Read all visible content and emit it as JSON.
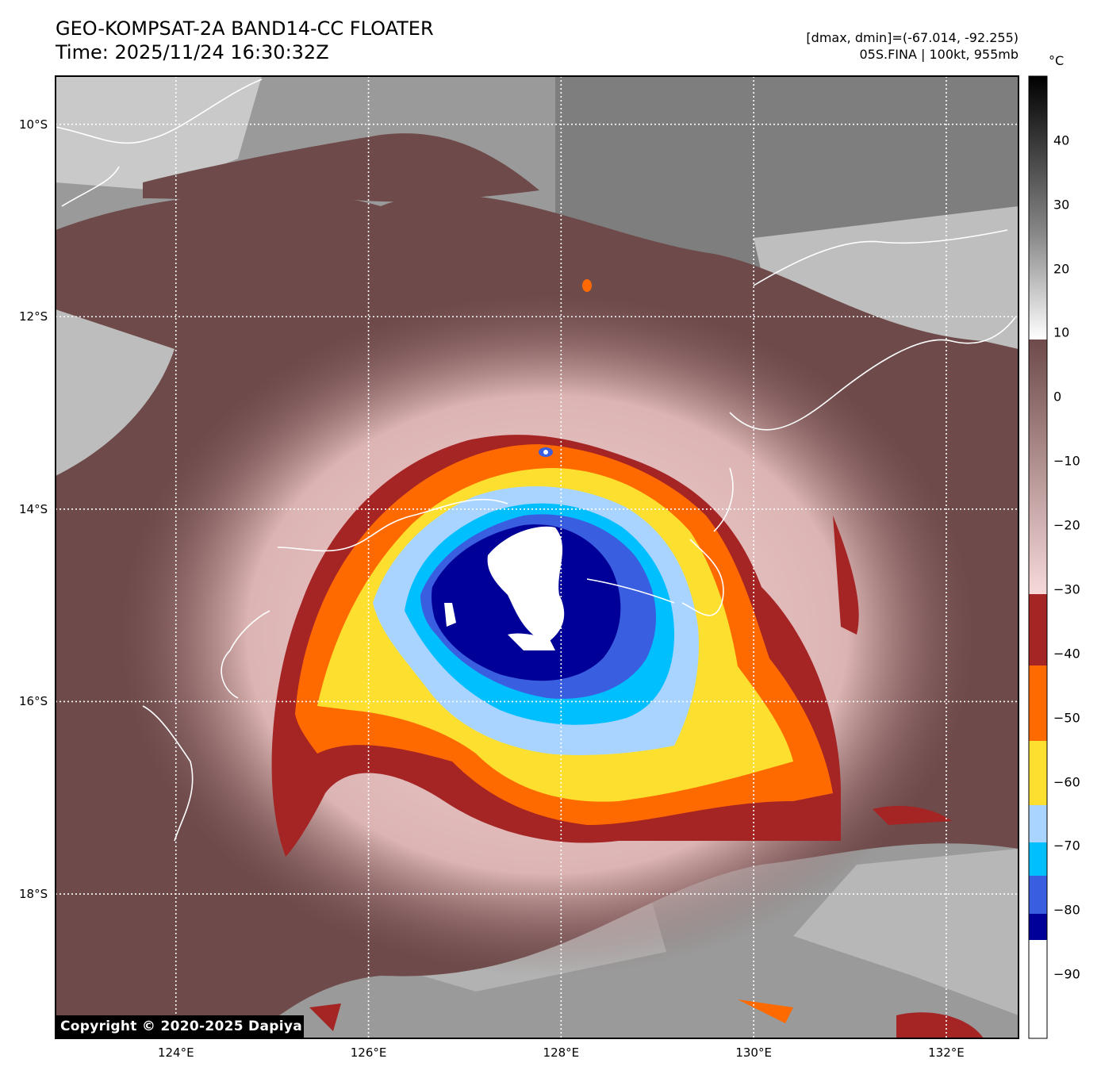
{
  "title": {
    "line1": "GEO-KOMPSAT-2A BAND14-CC FLOATER",
    "line2": "Time: 2025/11/24 16:30:32Z"
  },
  "info": {
    "line1": "[dmax, dmin]=(-67.014, -92.255)",
    "line2": "05S.FINA | 100kt, 955mb"
  },
  "map": {
    "lon_range": [
      122.75,
      132.75
    ],
    "lat_range": [
      -19.5,
      -9.5
    ],
    "lon_ticks": [
      "124°E",
      "126°E",
      "128°E",
      "130°E",
      "132°E"
    ],
    "lat_ticks": [
      "10°S",
      "12°S",
      "14°S",
      "16°S",
      "18°S"
    ],
    "lon_tick_values": [
      124,
      126,
      128,
      130,
      132
    ],
    "lat_tick_values": [
      -10,
      -12,
      -14,
      -16,
      -18
    ],
    "gridlines": true
  },
  "colorbar": {
    "unit": "°C",
    "ticks": [
      "40",
      "30",
      "20",
      "10",
      "0",
      "−10",
      "−20",
      "−30",
      "−40",
      "−50",
      "−60",
      "−70",
      "−80",
      "−90"
    ],
    "tick_values": [
      40,
      30,
      20,
      10,
      0,
      -10,
      -20,
      -30,
      -40,
      -50,
      -60,
      -70,
      -80,
      -90
    ],
    "range": [
      -100,
      50
    ],
    "colors": {
      "below_-85": "#ffffff",
      "-85_-80": "#000099",
      "-80_-75": "#3a5ee0",
      "-75_-70": "#00bfff",
      "-70_-65": "#a8d4ff",
      "-65_-55": "#fde02f",
      "-55_-45": "#ff6a00",
      "-45_-34": "#a52424",
      "-34_9_top": "#f7d9d9",
      "-34_9_bottom": "#6e4a4a",
      "above_9_top": "#000000",
      "above_9_bottom": "#ffffff"
    }
  },
  "copyright": "Copyright © 2020-2025 Dapiya"
}
